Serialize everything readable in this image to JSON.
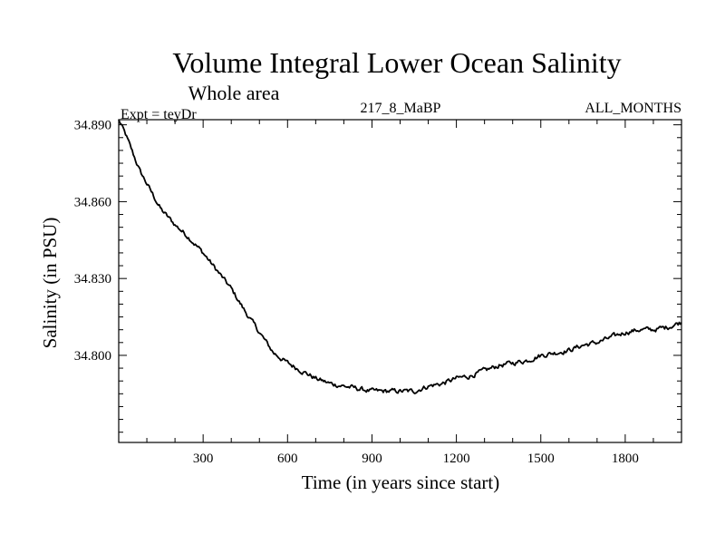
{
  "chart_data": {
    "type": "line",
    "title": "Volume Integral Lower Ocean Salinity",
    "subtitle": "Whole area",
    "experiment_label": "Expt = teyDr",
    "run_label": "217_8_MaBP",
    "period_label": "ALL_MONTHS",
    "xlabel": "Time (in years since start)",
    "ylabel": "Salinity (in PSU)",
    "xlim": [
      0,
      2000
    ],
    "ylim": [
      34.766,
      34.892
    ],
    "x_ticks": [
      300,
      600,
      900,
      1200,
      1500,
      1800
    ],
    "x_tick_labels": [
      "300",
      "600",
      "900",
      "1200",
      "1500",
      "1800"
    ],
    "y_ticks": [
      34.8,
      34.83,
      34.86,
      34.89
    ],
    "y_tick_labels": [
      "34.800",
      "34.830",
      "34.860",
      "34.890"
    ],
    "grid": false,
    "line_color": "#000000",
    "series": [
      {
        "name": "Salinity",
        "x": [
          0,
          25,
          50,
          75,
          100,
          125,
          150,
          200,
          250,
          300,
          350,
          400,
          450,
          500,
          550,
          600,
          650,
          700,
          750,
          800,
          850,
          900,
          950,
          1000,
          1050,
          1100,
          1150,
          1200,
          1250,
          1300,
          1350,
          1400,
          1450,
          1500,
          1550,
          1600,
          1650,
          1700,
          1750,
          1800,
          1850,
          1900,
          1950,
          2000
        ],
        "values": [
          34.892,
          34.886,
          34.879,
          34.872,
          34.867,
          34.862,
          34.857,
          34.851,
          34.846,
          34.84,
          34.833,
          34.826,
          34.817,
          34.809,
          34.801,
          34.797,
          34.794,
          34.791,
          34.789,
          34.788,
          34.787,
          34.786,
          34.786,
          34.786,
          34.786,
          34.788,
          34.789,
          34.791,
          34.792,
          34.794,
          34.796,
          34.797,
          34.798,
          34.8,
          34.801,
          34.802,
          34.804,
          34.805,
          34.807,
          34.809,
          34.81,
          34.81,
          34.811,
          34.813
        ]
      }
    ]
  }
}
